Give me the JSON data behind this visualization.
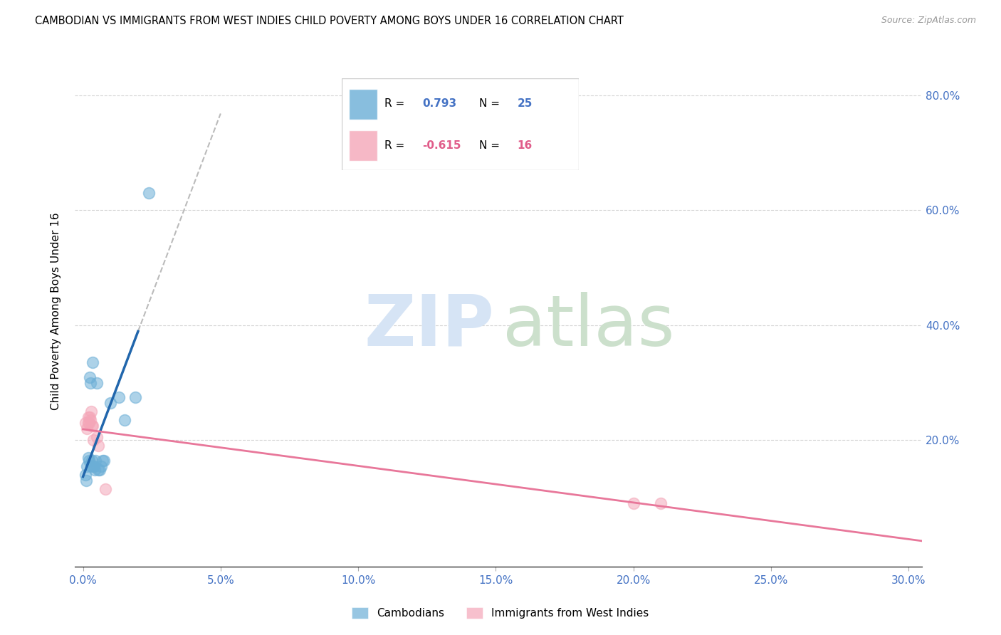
{
  "title": "CAMBODIAN VS IMMIGRANTS FROM WEST INDIES CHILD POVERTY AMONG BOYS UNDER 16 CORRELATION CHART",
  "source": "Source: ZipAtlas.com",
  "ylabel": "Child Poverty Among Boys Under 16",
  "xlabel_ticks": [
    "0.0%",
    "5.0%",
    "10.0%",
    "15.0%",
    "20.0%",
    "25.0%",
    "30.0%"
  ],
  "ylabel_ticks_right": [
    "20.0%",
    "40.0%",
    "60.0%",
    "80.0%"
  ],
  "xlim": [
    -0.003,
    0.305
  ],
  "ylim": [
    -0.02,
    0.87
  ],
  "cambodian_points": [
    [
      0.001,
      0.14
    ],
    [
      0.0015,
      0.155
    ],
    [
      0.0012,
      0.13
    ],
    [
      0.0018,
      0.17
    ],
    [
      0.0022,
      0.165
    ],
    [
      0.0025,
      0.31
    ],
    [
      0.0028,
      0.3
    ],
    [
      0.003,
      0.155
    ],
    [
      0.0032,
      0.165
    ],
    [
      0.0035,
      0.335
    ],
    [
      0.0038,
      0.155
    ],
    [
      0.004,
      0.155
    ],
    [
      0.0042,
      0.148
    ],
    [
      0.0045,
      0.165
    ],
    [
      0.005,
      0.3
    ],
    [
      0.0055,
      0.148
    ],
    [
      0.006,
      0.148
    ],
    [
      0.0065,
      0.155
    ],
    [
      0.007,
      0.165
    ],
    [
      0.0075,
      0.165
    ],
    [
      0.01,
      0.265
    ],
    [
      0.013,
      0.275
    ],
    [
      0.015,
      0.235
    ],
    [
      0.019,
      0.275
    ],
    [
      0.024,
      0.63
    ]
  ],
  "westindies_points": [
    [
      0.001,
      0.23
    ],
    [
      0.0015,
      0.22
    ],
    [
      0.0018,
      0.24
    ],
    [
      0.002,
      0.23
    ],
    [
      0.0022,
      0.23
    ],
    [
      0.0025,
      0.24
    ],
    [
      0.0028,
      0.235
    ],
    [
      0.003,
      0.25
    ],
    [
      0.0032,
      0.225
    ],
    [
      0.0035,
      0.225
    ],
    [
      0.0038,
      0.2
    ],
    [
      0.005,
      0.205
    ],
    [
      0.0055,
      0.19
    ],
    [
      0.008,
      0.115
    ],
    [
      0.2,
      0.09
    ],
    [
      0.21,
      0.09
    ]
  ],
  "cambodian_color": "#6baed6",
  "westindies_color": "#f4a6b8",
  "cam_line_color": "#2166ac",
  "wi_line_color": "#e8779a",
  "dash_color": "#bbbbbb",
  "title_fontsize": 10.5,
  "source_fontsize": 9,
  "marker_size": 130,
  "marker_alpha": 0.55,
  "legend_r_cam": "0.793",
  "legend_n_cam": "25",
  "legend_r_wi": "-0.615",
  "legend_n_wi": "16",
  "legend_label_cam": "Cambodians",
  "legend_label_wi": "Immigrants from West Indies",
  "watermark_zip_color": "#d6e4f5",
  "watermark_atlas_color": "#cce0cc",
  "grid_color": "#d5d5d5"
}
